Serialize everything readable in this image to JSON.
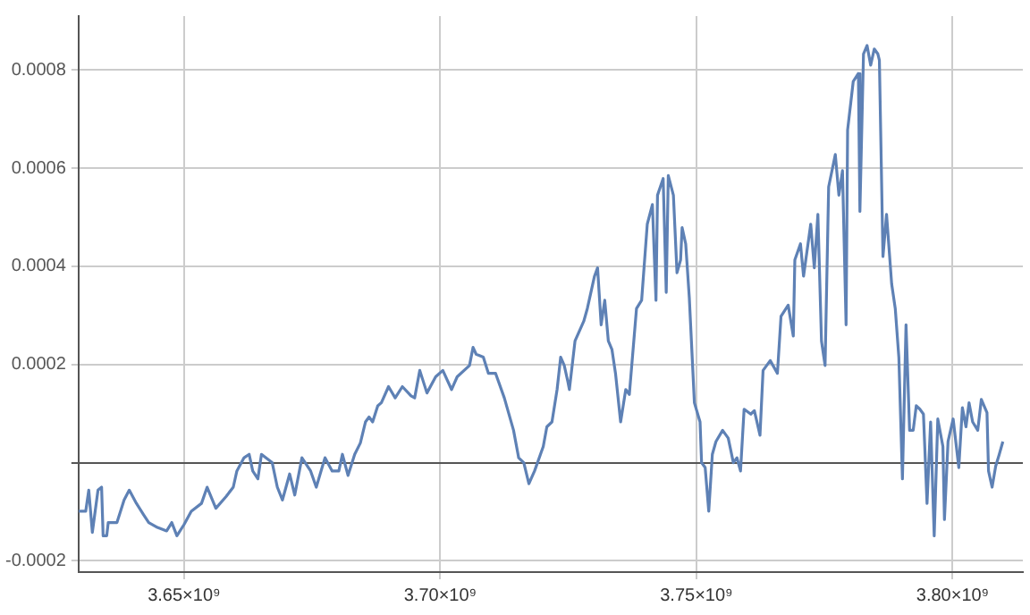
{
  "chart_data": {
    "type": "line",
    "x": [
      3629400000.0,
      3630800000.0,
      3631400000.0,
      3632100000.0,
      3633200000.0,
      3633900000.0,
      3634200000.0,
      3634900000.0,
      3635200000.0,
      3636900000.0,
      3638300000.0,
      3639300000.0,
      3640700000.0,
      3642100000.0,
      3643100000.0,
      3644800000.0,
      3646600000.0,
      3647600000.0,
      3648600000.0,
      3650000000.0,
      3651400000.0,
      3653400000.0,
      3654500000.0,
      3656200000.0,
      3658200000.0,
      3659600000.0,
      3660300000.0,
      3661700000.0,
      3662700000.0,
      3663400000.0,
      3664400000.0,
      3665100000.0,
      3667200000.0,
      3668200000.0,
      3669200000.0,
      3670600000.0,
      3671600000.0,
      3673000000.0,
      3674700000.0,
      3675800000.0,
      3677500000.0,
      3678900000.0,
      3680200000.0,
      3680900000.0,
      3682000000.0,
      3683300000.0,
      3684400000.0,
      3685400000.0,
      3686100000.0,
      3686800000.0,
      3687800000.0,
      3688500000.0,
      3689900000.0,
      3691200000.0,
      3692600000.0,
      3694300000.0,
      3695000000.0,
      3696000000.0,
      3697400000.0,
      3699100000.0,
      3700500000.0,
      3702200000.0,
      3703300000.0,
      3705700000.0,
      3706400000.0,
      3707000000.0,
      3708400000.0,
      3709400000.0,
      3710800000.0,
      3712500000.0,
      3714300000.0,
      3715300000.0,
      3716300000.0,
      3717300000.0,
      3718400000.0,
      3720100000.0,
      3720800000.0,
      3721800000.0,
      3722800000.0,
      3723500000.0,
      3724200000.0,
      3724900000.0,
      3725200000.0,
      3726300000.0,
      3728000000.0,
      3728700000.0,
      3729400000.0,
      3730100000.0,
      3730700000.0,
      3731400000.0,
      3732100000.0,
      3732800000.0,
      3733500000.0,
      3734200000.0,
      3735200000.0,
      3736200000.0,
      3736900000.0,
      3738300000.0,
      3739300000.0,
      3740400000.0,
      3741400000.0,
      3742100000.0,
      3742400000.0,
      3743500000.0,
      3744100000.0,
      3744500000.0,
      3745500000.0,
      3746200000.0,
      3746900000.0,
      3747200000.0,
      3747900000.0,
      3748600000.0,
      3749600000.0,
      3750700000.0,
      3751000000.0,
      3751700000.0,
      3752400000.0,
      3753100000.0,
      3753800000.0,
      3755100000.0,
      3756200000.0,
      3757200000.0,
      3757900000.0,
      3758600000.0,
      3759300000.0,
      3760600000.0,
      3761300000.0,
      3762400000.0,
      3763000000.0,
      3764400000.0,
      3765800000.0,
      3766500000.0,
      3767900000.0,
      3768900000.0,
      3769200000.0,
      3770300000.0,
      3770900000.0,
      3772300000.0,
      3773000000.0,
      3773700000.0,
      3774400000.0,
      3775100000.0,
      3775800000.0,
      3777100000.0,
      3777800000.0,
      3778500000.0,
      3779200000.0,
      3779500000.0,
      3780600000.0,
      3781600000.0,
      3781900000.0,
      3782600000.0,
      3783300000.0,
      3784000000.0,
      3784700000.0,
      3785400000.0,
      3785700000.0,
      3786400000.0,
      3787100000.0,
      3787400000.0,
      3788100000.0,
      3788800000.0,
      3789500000.0,
      3790200000.0,
      3790900000.0,
      3791600000.0,
      3792300000.0,
      3792900000.0,
      3793600000.0,
      3794300000.0,
      3795000000.0,
      3795700000.0,
      3796400000.0,
      3797100000.0,
      3798100000.0,
      3798400000.0,
      3799100000.0,
      3800100000.0,
      3801200000.0,
      3801900000.0,
      3802600000.0,
      3803200000.0,
      3803900000.0,
      3804900000.0,
      3805600000.0,
      3806700000.0,
      3807000000.0,
      3807700000.0,
      3808400000.0,
      3809100000.0,
      3809800000.0
    ],
    "series": [
      {
        "color": "#5e81b5",
        "values": [
          -9.9e-05,
          -9.9e-05,
          -5.6e-05,
          -0.000142,
          -5.6e-05,
          -5e-05,
          -0.000149,
          -0.000149,
          -0.000122,
          -0.000122,
          -7.6e-05,
          -5.6e-05,
          -8.3e-05,
          -0.000106,
          -0.000122,
          -0.000132,
          -0.000139,
          -0.000122,
          -0.000149,
          -0.000126,
          -9.9e-05,
          -8.3e-05,
          -5e-05,
          -9.3e-05,
          -6.9e-05,
          -5e-05,
          -1.7e-05,
          1e-05,
          1.7e-05,
          -1.7e-05,
          -3.3e-05,
          1.7e-05,
          0,
          -5e-05,
          -7.6e-05,
          -2.3e-05,
          -6.6e-05,
          1e-05,
          -1.7e-05,
          -5e-05,
          1e-05,
          -1.7e-05,
          -1.7e-05,
          1.7e-05,
          -2.6e-05,
          1.7e-05,
          4e-05,
          8.3e-05,
          9.3e-05,
          8.3e-05,
          0.000116,
          0.000122,
          0.000155,
          0.000132,
          0.000155,
          0.000136,
          0.000132,
          0.000188,
          0.000142,
          0.000175,
          0.000188,
          0.000149,
          0.000175,
          0.000198,
          0.000235,
          0.000221,
          0.000215,
          0.000182,
          0.000182,
          0.000132,
          6.6e-05,
          1e-05,
          0,
          -4.3e-05,
          -1.7e-05,
          3.3e-05,
          7.3e-05,
          8.3e-05,
          0.000149,
          0.000215,
          0.000198,
          0.000165,
          0.000149,
          0.000248,
          0.000288,
          0.000314,
          0.000347,
          0.00038,
          0.000397,
          0.000281,
          0.000331,
          0.000248,
          0.000231,
          0.000182,
          8.3e-05,
          0.000149,
          0.000139,
          0.000314,
          0.000331,
          0.000486,
          0.000526,
          0.000331,
          0.000545,
          0.000579,
          0.000347,
          0.000585,
          0.000545,
          0.000387,
          0.000413,
          0.000479,
          0.000446,
          0.000337,
          0.000122,
          8.3e-05,
          0,
          -1e-05,
          -9.9e-05,
          1.7e-05,
          4.3e-05,
          6.6e-05,
          5e-05,
          0,
          1e-05,
          -1.7e-05,
          0.000109,
          9.9e-05,
          0.000106,
          5.6e-05,
          0.000188,
          0.000208,
          0.000182,
          0.000298,
          0.000321,
          0.000258,
          0.000413,
          0.000446,
          0.00038,
          0.000486,
          0.000397,
          0.000506,
          0.000248,
          0.000198,
          0.000562,
          0.000628,
          0.000545,
          0.000595,
          0.000281,
          0.000678,
          0.000777,
          0.000793,
          0.000512,
          0.000833,
          0.00085,
          0.00081,
          0.000843,
          0.000833,
          0.00082,
          0.00042,
          0.000506,
          0.000463,
          0.000364,
          0.000314,
          0.000215,
          -3.3e-05,
          0.000281,
          6.6e-05,
          6.6e-05,
          0.000116,
          0.000109,
          9.9e-05,
          -8.3e-05,
          8.3e-05,
          -0.000149,
          8.9e-05,
          3.3e-05,
          -0.000116,
          4.3e-05,
          8.9e-05,
          -1e-05,
          0.000112,
          7.3e-05,
          0.000122,
          8.3e-05,
          6.6e-05,
          0.000129,
          0.000102,
          -1.7e-05,
          -5e-05,
          -7e-06,
          1.7e-05,
          4.3e-05
        ]
      }
    ],
    "xlim": [
      3629400000.0,
      3813700000.0
    ],
    "ylim": [
      -0.000223,
      0.00091
    ],
    "xticks": [
      {
        "value": 3650000000.0,
        "label": "3.65×10⁹"
      },
      {
        "value": 3700000000.0,
        "label": "3.70×10⁹"
      },
      {
        "value": 3750000000.0,
        "label": "3.75×10⁹"
      },
      {
        "value": 3800000000.0,
        "label": "3.80×10⁹"
      }
    ],
    "yticks": [
      {
        "value": -0.0002,
        "label": "-0.0002"
      },
      {
        "value": 0,
        "label": null
      },
      {
        "value": 0.0002,
        "label": "0.0002"
      },
      {
        "value": 0.0004,
        "label": "0.0004"
      },
      {
        "value": 0.0006,
        "label": "0.0006"
      },
      {
        "value": 0.0008,
        "label": "0.0008"
      }
    ],
    "grid": true
  }
}
